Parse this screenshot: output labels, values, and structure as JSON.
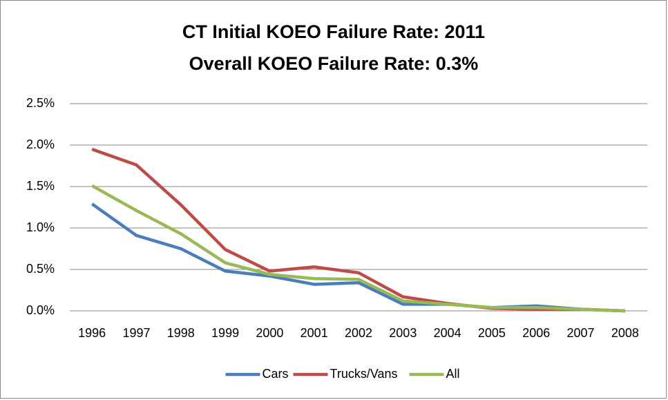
{
  "chart_data": {
    "type": "line",
    "title": [
      "CT Initial KOEO Failure Rate: 2011",
      "Overall KOEO Failure Rate: 0.3%"
    ],
    "categories": [
      "1996",
      "1997",
      "1998",
      "1999",
      "2000",
      "2001",
      "2002",
      "2003",
      "2004",
      "2005",
      "2006",
      "2007",
      "2008"
    ],
    "series": [
      {
        "name": "Cars",
        "color": "#4a7ebb",
        "values": [
          1.29,
          0.91,
          0.75,
          0.48,
          0.42,
          0.32,
          0.34,
          0.08,
          0.08,
          0.04,
          0.06,
          0.02,
          0.0
        ]
      },
      {
        "name": "Trucks/Vans",
        "color": "#be4b48",
        "values": [
          1.95,
          1.76,
          1.28,
          0.74,
          0.48,
          0.53,
          0.46,
          0.17,
          0.09,
          0.03,
          0.02,
          0.02,
          0.0
        ]
      },
      {
        "name": "All",
        "color": "#98b954",
        "values": [
          1.51,
          1.21,
          0.93,
          0.58,
          0.44,
          0.39,
          0.38,
          0.12,
          0.08,
          0.04,
          0.04,
          0.02,
          0.0
        ]
      }
    ],
    "ylim": [
      0,
      2.5
    ],
    "yticks": [
      {
        "value": 0,
        "label": "0.0%"
      },
      {
        "value": 0.5,
        "label": "0.5%"
      },
      {
        "value": 1,
        "label": "1.0%"
      },
      {
        "value": 1.5,
        "label": "1.5%"
      },
      {
        "value": 2,
        "label": "2.0%"
      },
      {
        "value": 2.5,
        "label": "2.5%"
      }
    ],
    "grid": true,
    "legend": "bottom"
  }
}
